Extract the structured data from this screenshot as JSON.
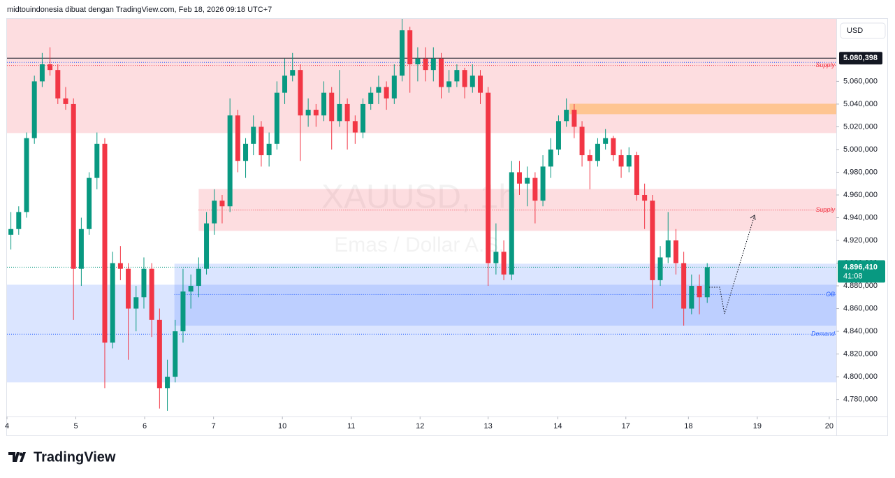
{
  "header": "midtouindonesia dibuat dengan TradingView.com, Feb 18, 2026 09:18 UTC+7",
  "footer_logo": "TradingView",
  "chart_data": {
    "type": "candlestick",
    "currency": "USD",
    "watermark": [
      "XAUUSD, 1h",
      "Emas / Dollar A.S."
    ],
    "up_color": "#089981",
    "down_color": "#f23645",
    "xlim": [
      -0.5,
      105.5
    ],
    "xticks": [
      {
        "value": -0.5,
        "label": "4"
      },
      {
        "value": 8.3,
        "label": "5"
      },
      {
        "value": 17.1,
        "label": "6"
      },
      {
        "value": 25.9,
        "label": "7"
      },
      {
        "value": 34.7,
        "label": "10"
      },
      {
        "value": 43.5,
        "label": "11"
      },
      {
        "value": 52.3,
        "label": "12"
      },
      {
        "value": 61,
        "label": "13"
      },
      {
        "value": 69.9,
        "label": "14"
      },
      {
        "value": 78.6,
        "label": "17"
      },
      {
        "value": 86.6,
        "label": "18"
      },
      {
        "value": 95.4,
        "label": "19"
      },
      {
        "value": 104.6,
        "label": "20"
      }
    ],
    "ylim": [
      4765,
      5115
    ],
    "yticks": [
      {
        "value": 5060,
        "label": "5.060,000"
      },
      {
        "value": 5040,
        "label": "5.040,000"
      },
      {
        "value": 5020,
        "label": "5.020,000"
      },
      {
        "value": 5000,
        "label": "5.000,000"
      },
      {
        "value": 4980,
        "label": "4.980,000"
      },
      {
        "value": 4960,
        "label": "4.960,000"
      },
      {
        "value": 4940,
        "label": "4.940,000"
      },
      {
        "value": 4920,
        "label": "4.920,000"
      },
      {
        "value": 4900,
        "label": "4.900,000"
      },
      {
        "value": 4880,
        "label": "4.880,000"
      },
      {
        "value": 4860,
        "label": "4.860,000"
      },
      {
        "value": 4840,
        "label": "4.840,000"
      },
      {
        "value": 4820,
        "label": "4.820,000"
      },
      {
        "value": 4800,
        "label": "4.800,000"
      },
      {
        "value": 4780,
        "label": "4.780,000"
      }
    ],
    "ohlc": [
      [
        4925,
        4945,
        4912,
        4930
      ],
      [
        4930,
        4950,
        4925,
        4945
      ],
      [
        4945,
        5015,
        4940,
        5010
      ],
      [
        5010,
        5065,
        5005,
        5060
      ],
      [
        5060,
        5085,
        5055,
        5075
      ],
      [
        5075,
        5090,
        5065,
        5070
      ],
      [
        5070,
        5075,
        5040,
        5045
      ],
      [
        5045,
        5055,
        5035,
        5040
      ],
      [
        5040,
        5045,
        4850,
        4895
      ],
      [
        4895,
        4940,
        4880,
        4930
      ],
      [
        4930,
        4980,
        4925,
        4975
      ],
      [
        4975,
        5015,
        4965,
        5005
      ],
      [
        5005,
        5010,
        4790,
        4830
      ],
      [
        4830,
        4910,
        4825,
        4900
      ],
      [
        4900,
        4915,
        4885,
        4895
      ],
      [
        4895,
        4900,
        4815,
        4860
      ],
      [
        4860,
        4880,
        4840,
        4870
      ],
      [
        4870,
        4905,
        4860,
        4895
      ],
      [
        4895,
        4900,
        4835,
        4850
      ],
      [
        4850,
        4860,
        4772,
        4790
      ],
      [
        4790,
        4815,
        4770,
        4800
      ],
      [
        4800,
        4850,
        4795,
        4840
      ],
      [
        4840,
        4895,
        4830,
        4875
      ],
      [
        4875,
        4890,
        4860,
        4880
      ],
      [
        4880,
        4905,
        4870,
        4895
      ],
      [
        4895,
        4945,
        4890,
        4935
      ],
      [
        4935,
        4965,
        4925,
        4955
      ],
      [
        4955,
        4960,
        4935,
        4950
      ],
      [
        4950,
        5045,
        4945,
        5030
      ],
      [
        5030,
        5035,
        4980,
        4990
      ],
      [
        4990,
        5010,
        4975,
        5005
      ],
      [
        5005,
        5030,
        4995,
        5020
      ],
      [
        5020,
        5025,
        4985,
        4995
      ],
      [
        4995,
        5015,
        4985,
        5005
      ],
      [
        5005,
        5060,
        5000,
        5050
      ],
      [
        5050,
        5080,
        5040,
        5065
      ],
      [
        5065,
        5085,
        5060,
        5070
      ],
      [
        5070,
        5075,
        4990,
        5030
      ],
      [
        5030,
        5045,
        5020,
        5035
      ],
      [
        5035,
        5040,
        5020,
        5030
      ],
      [
        5030,
        5060,
        5025,
        5050
      ],
      [
        5050,
        5055,
        5000,
        5025
      ],
      [
        5025,
        5070,
        5020,
        5040
      ],
      [
        5040,
        5045,
        5000,
        5025
      ],
      [
        5025,
        5030,
        5005,
        5015
      ],
      [
        5015,
        5045,
        5010,
        5040
      ],
      [
        5040,
        5055,
        5035,
        5050
      ],
      [
        5050,
        5065,
        5040,
        5055
      ],
      [
        5055,
        5060,
        5035,
        5045
      ],
      [
        5045,
        5075,
        5040,
        5065
      ],
      [
        5065,
        5115,
        5060,
        5105
      ],
      [
        5105,
        5108,
        5050,
        5075
      ],
      [
        5075,
        5090,
        5060,
        5080
      ],
      [
        5080,
        5090,
        5060,
        5070
      ],
      [
        5070,
        5090,
        5060,
        5080
      ],
      [
        5080,
        5085,
        5045,
        5055
      ],
      [
        5055,
        5070,
        5050,
        5060
      ],
      [
        5060,
        5075,
        5055,
        5070
      ],
      [
        5070,
        5072,
        5045,
        5055
      ],
      [
        5055,
        5075,
        5050,
        5065
      ],
      [
        5065,
        5070,
        5040,
        5050
      ],
      [
        5050,
        5055,
        4880,
        4900
      ],
      [
        4900,
        4935,
        4890,
        4910
      ],
      [
        4910,
        4920,
        4885,
        4890
      ],
      [
        4890,
        4990,
        4885,
        4980
      ],
      [
        4980,
        4990,
        4960,
        4970
      ],
      [
        4970,
        4985,
        4950,
        4975
      ],
      [
        4975,
        4980,
        4935,
        4955
      ],
      [
        4955,
        4995,
        4950,
        4985
      ],
      [
        4985,
        5010,
        4975,
        5000
      ],
      [
        5000,
        5030,
        4995,
        5025
      ],
      [
        5025,
        5045,
        5020,
        5035
      ],
      [
        5035,
        5040,
        5010,
        5020
      ],
      [
        5020,
        5025,
        4985,
        4995
      ],
      [
        4995,
        5000,
        4965,
        4990
      ],
      [
        4990,
        5010,
        4985,
        5005
      ],
      [
        5005,
        5018,
        5000,
        5010
      ],
      [
        5010,
        5012,
        4990,
        4995
      ],
      [
        4995,
        5000,
        4975,
        4985
      ],
      [
        4985,
        5002,
        4980,
        4995
      ],
      [
        4995,
        4998,
        4955,
        4960
      ],
      [
        4960,
        4970,
        4930,
        4955
      ],
      [
        4955,
        4960,
        4860,
        4885
      ],
      [
        4885,
        4915,
        4880,
        4905
      ],
      [
        4905,
        4945,
        4900,
        4920
      ],
      [
        4920,
        4930,
        4890,
        4900
      ],
      [
        4900,
        4910,
        4845,
        4860
      ],
      [
        4860,
        4890,
        4855,
        4880
      ],
      [
        4880,
        4890,
        4855,
        4870
      ],
      [
        4870,
        4900,
        4865,
        4896.41
      ]
    ],
    "zones": [
      {
        "label": "Supply",
        "top": 5115,
        "bottom": 5014.5,
        "start": -0.5,
        "line": 5074,
        "color": "rgba(242,54,69,0.17)",
        "label_color": "#f23645"
      },
      {
        "top": 5040.3,
        "bottom": 5031.1,
        "start": 71.4,
        "color": "rgba(255,152,0,0.35)"
      },
      {
        "label": "Supply",
        "top": 4965.3,
        "bottom": 4928.4,
        "start": 24,
        "line": 4946.8,
        "color": "rgba(242,54,69,0.17)",
        "label_color": "#f23645"
      },
      {
        "label": "Demand",
        "top": 4881,
        "bottom": 4795,
        "start": -0.5,
        "line": 4837.4,
        "color": "rgba(41,98,255,0.17)",
        "label_color": "#2962ff"
      },
      {
        "label": "OB",
        "top": 4899.5,
        "bottom": 4845,
        "start": 20.9,
        "line": 4872.4,
        "color": "rgba(41,98,255,0.17)",
        "label_color": "#2962ff"
      }
    ],
    "price_line": {
      "value": 5080.398,
      "label": "5.080,398"
    },
    "last_price": {
      "value": 4896.41,
      "label": "4.896,410"
    },
    "countdown": "41:08"
  }
}
